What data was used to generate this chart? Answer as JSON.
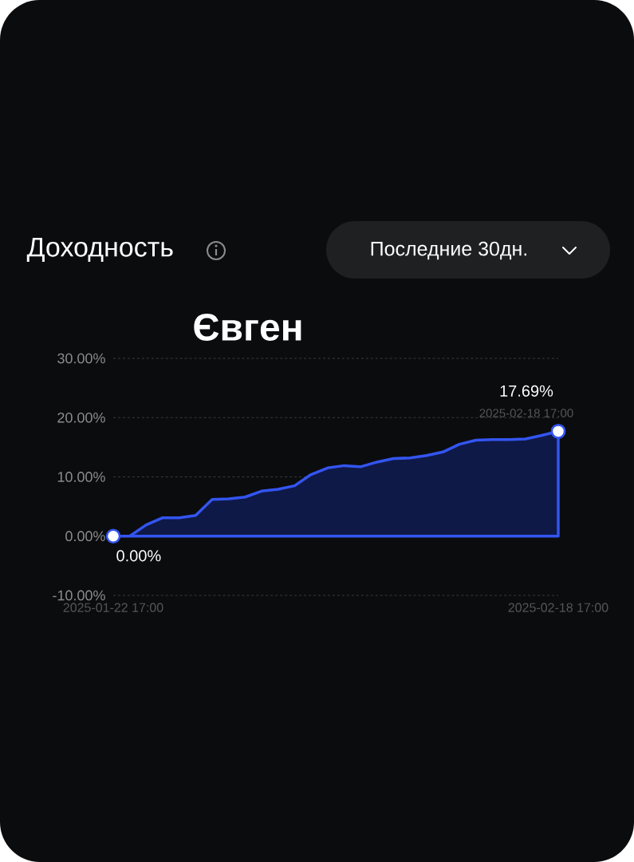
{
  "chart_data": {
    "type": "area",
    "title": "Доходность",
    "subtitle": "Євген",
    "annotations": [
      "Последние 30дн.",
      {
        "text": "0.00%",
        "x": "2025-01-22T17:00",
        "y": 0
      },
      {
        "text": "17.69%",
        "x": "2025-02-18T17:00",
        "y": 17.69
      },
      {
        "text": "2025-02-18 17:00",
        "x": "2025-02-18T17:00",
        "y": 17.69
      }
    ],
    "x": [
      "2025-01-22T17:00",
      "2025-01-23T17:00",
      "2025-01-24T17:00",
      "2025-01-25T17:00",
      "2025-01-26T17:00",
      "2025-01-27T17:00",
      "2025-01-28T17:00",
      "2025-01-29T17:00",
      "2025-01-30T17:00",
      "2025-01-31T17:00",
      "2025-02-01T17:00",
      "2025-02-02T17:00",
      "2025-02-03T17:00",
      "2025-02-04T17:00",
      "2025-02-05T17:00",
      "2025-02-06T17:00",
      "2025-02-07T17:00",
      "2025-02-08T17:00",
      "2025-02-09T17:00",
      "2025-02-10T17:00",
      "2025-02-11T17:00",
      "2025-02-12T17:00",
      "2025-02-13T17:00",
      "2025-02-14T17:00",
      "2025-02-15T17:00",
      "2025-02-16T17:00",
      "2025-02-17T17:00",
      "2025-02-18T17:00"
    ],
    "values": [
      0,
      0,
      1.9,
      3.1,
      3.1,
      3.5,
      6.2,
      6.3,
      6.6,
      7.6,
      7.9,
      8.5,
      10.4,
      11.5,
      11.9,
      11.7,
      12.5,
      13.1,
      13.2,
      13.6,
      14.2,
      15.5,
      16.2,
      16.3,
      16.3,
      16.4,
      17.0,
      17.69
    ],
    "color": "#3355f0",
    "xlim": [
      "2025-01-22T17:00",
      "2025-02-18T17:00"
    ],
    "xticks": [
      {
        "value": "2025-01-22T17:00",
        "label": "2025-01-22 17:00"
      },
      {
        "value": "2025-02-18T17:00",
        "label": "2025-02-18 17:00"
      }
    ],
    "ylim": [
      -10,
      30
    ],
    "yticks": [
      {
        "value": -10,
        "label": "-10.00%"
      },
      {
        "value": 0,
        "label": "0.00%"
      },
      {
        "value": 10,
        "label": "10.00%"
      },
      {
        "value": 20,
        "label": "20.00%"
      },
      {
        "value": 30,
        "label": "30.00%"
      }
    ],
    "grid": "y",
    "marker": "none"
  }
}
